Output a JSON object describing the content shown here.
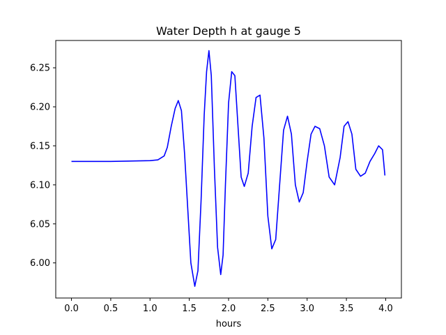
{
  "chart_data": {
    "type": "line",
    "title": "Water Depth h at gauge 5",
    "xlabel": "hours",
    "ylabel": "",
    "xlim": [
      -0.2,
      4.2
    ],
    "ylim": [
      5.955,
      6.285
    ],
    "xticks": [
      0.0,
      0.5,
      1.0,
      1.5,
      2.0,
      2.5,
      3.0,
      3.5,
      4.0
    ],
    "xtick_labels": [
      "0.0",
      "0.5",
      "1.0",
      "1.5",
      "2.0",
      "2.5",
      "3.0",
      "3.5",
      "4.0"
    ],
    "yticks": [
      6.0,
      6.05,
      6.1,
      6.15,
      6.2,
      6.25
    ],
    "ytick_labels": [
      "6.00",
      "6.05",
      "6.10",
      "6.15",
      "6.20",
      "6.25"
    ],
    "grid": false,
    "series": [
      {
        "color": "#0000ff",
        "x": [
          0.0,
          0.5,
          1.0,
          1.1,
          1.18,
          1.22,
          1.27,
          1.32,
          1.36,
          1.4,
          1.44,
          1.48,
          1.52,
          1.57,
          1.61,
          1.65,
          1.69,
          1.72,
          1.75,
          1.78,
          1.82,
          1.86,
          1.9,
          1.93,
          1.96,
          2.0,
          2.04,
          2.08,
          2.12,
          2.16,
          2.2,
          2.25,
          2.3,
          2.35,
          2.4,
          2.45,
          2.5,
          2.55,
          2.6,
          2.65,
          2.7,
          2.75,
          2.8,
          2.85,
          2.9,
          2.95,
          3.0,
          3.05,
          3.1,
          3.16,
          3.22,
          3.28,
          3.35,
          3.42,
          3.47,
          3.52,
          3.57,
          3.62,
          3.68,
          3.74,
          3.8,
          3.86,
          3.91,
          3.96,
          3.99
        ],
        "y": [
          6.13,
          6.13,
          6.131,
          6.132,
          6.137,
          6.148,
          6.175,
          6.198,
          6.208,
          6.195,
          6.14,
          6.07,
          6.0,
          5.97,
          5.99,
          6.08,
          6.19,
          6.245,
          6.272,
          6.24,
          6.12,
          6.02,
          5.985,
          6.01,
          6.1,
          6.205,
          6.245,
          6.24,
          6.175,
          6.11,
          6.098,
          6.115,
          6.175,
          6.212,
          6.215,
          6.16,
          6.06,
          6.018,
          6.03,
          6.1,
          6.17,
          6.188,
          6.165,
          6.1,
          6.078,
          6.09,
          6.13,
          6.165,
          6.175,
          6.172,
          6.15,
          6.11,
          6.1,
          6.135,
          6.175,
          6.181,
          6.165,
          6.12,
          6.111,
          6.115,
          6.13,
          6.14,
          6.15,
          6.145,
          6.112
        ]
      }
    ]
  }
}
